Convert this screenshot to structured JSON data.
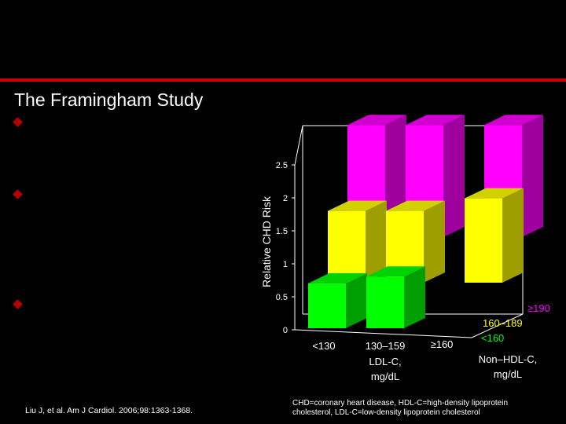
{
  "slide": {
    "title": "The Framingham Study",
    "citation": "Liu J, et al. Am J Cardiol. 2006;98:1363-1368.",
    "footnote_line1": "CHD=coronary heart disease, HDL-C=high-density lipoprotein",
    "footnote_line2": "cholesterol, LDL-C=low-density lipoprotein cholesterol"
  },
  "colors": {
    "accent_rule": "#cc0000",
    "bullet": "#b30000",
    "magenta": "#ff00ff",
    "yellow": "#ffff00",
    "green": "#00ff00"
  },
  "chart_data": {
    "type": "bar",
    "ylabel": "Relative CHD Risk",
    "ylim": [
      0,
      2.5
    ],
    "yticks": [
      "0",
      "0.5",
      "1",
      "1.5",
      "2",
      "2.5"
    ],
    "categories": [
      "<130",
      "130–159",
      "≥160"
    ],
    "xlabel_line1": "LDL-C,",
    "xlabel_line2": "mg/dL",
    "series_axis_label_line1": "Non–HDL-C,",
    "series_axis_label_line2": "mg/dL",
    "series": [
      {
        "name": "<160",
        "color": "#00ff00",
        "values": [
          1.0,
          1.15,
          null
        ]
      },
      {
        "name": "160–189",
        "color": "#ffff00",
        "values": [
          1.6,
          1.6,
          1.88
        ]
      },
      {
        "name": "≥190",
        "color": "#ff00ff",
        "values": [
          2.5,
          2.5,
          2.5
        ]
      }
    ]
  }
}
